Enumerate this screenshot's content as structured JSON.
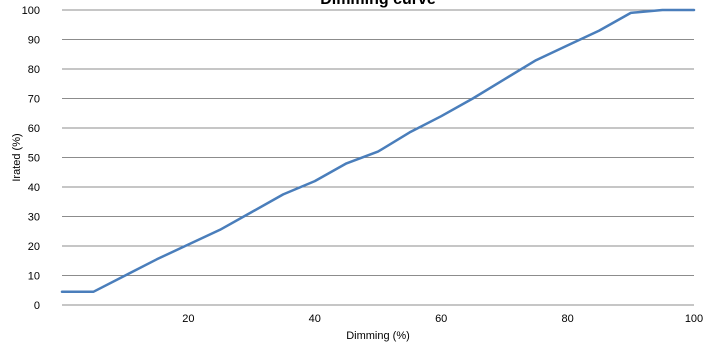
{
  "chart_data": {
    "type": "line",
    "title": "Dimming curve",
    "xlabel": "Dimming (%)",
    "ylabel": "Irated (%)",
    "xlim": [
      0,
      100
    ],
    "ylim": [
      0,
      100
    ],
    "x_ticks": [
      20,
      40,
      60,
      80,
      100
    ],
    "y_ticks": [
      0,
      10,
      20,
      30,
      40,
      50,
      60,
      70,
      80,
      90,
      100
    ],
    "grid": true,
    "legend": "none",
    "series": [
      {
        "color": "#4a7ebb",
        "points": [
          [
            0,
            4.5
          ],
          [
            5,
            4.5
          ],
          [
            10,
            10
          ],
          [
            15,
            15.5
          ],
          [
            20,
            20.5
          ],
          [
            25,
            25.5
          ],
          [
            30,
            31.5
          ],
          [
            35,
            37.5
          ],
          [
            40,
            42
          ],
          [
            45,
            48
          ],
          [
            50,
            52
          ],
          [
            55,
            58.5
          ],
          [
            60,
            64
          ],
          [
            65,
            70
          ],
          [
            70,
            76.5
          ],
          [
            75,
            83
          ],
          [
            80,
            88
          ],
          [
            85,
            93
          ],
          [
            90,
            99
          ],
          [
            95,
            100
          ],
          [
            100,
            100
          ]
        ]
      }
    ]
  }
}
